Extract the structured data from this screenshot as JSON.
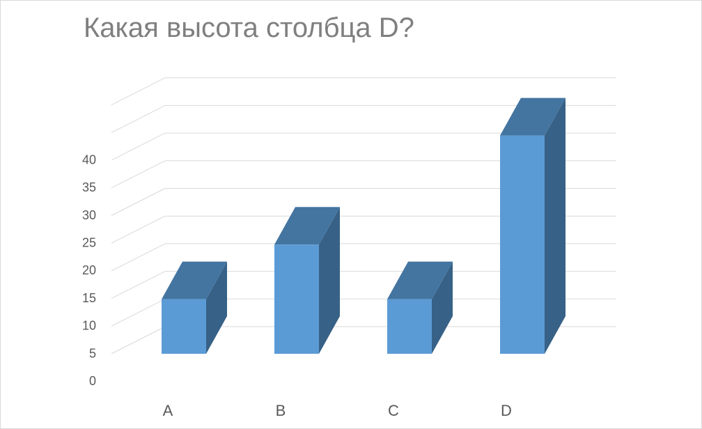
{
  "chart_data": {
    "type": "bar",
    "title": "Какая высота столбца D?",
    "categories": [
      "A",
      "B",
      "C",
      "D"
    ],
    "values": [
      10,
      20,
      10,
      40
    ],
    "ylim": [
      0,
      45
    ],
    "yticks": [
      "0",
      "5",
      "10",
      "15",
      "20",
      "25",
      "30",
      "35",
      "40"
    ],
    "grid": true,
    "style": "3d-column",
    "colors": {
      "front": "#5b9bd5",
      "top": "#4475a1",
      "side": "#376186",
      "grid": "#d9d9d9",
      "text": "#595959",
      "title": "#7f7f7f"
    }
  }
}
